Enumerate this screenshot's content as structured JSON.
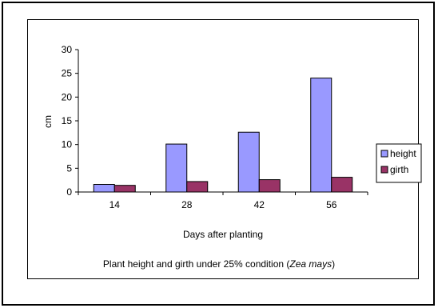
{
  "chart_data": {
    "type": "bar",
    "categories": [
      "14",
      "28",
      "42",
      "56"
    ],
    "series": [
      {
        "name": "height",
        "values": [
          1.6,
          10.1,
          12.6,
          24.0
        ],
        "color": "#9999ff"
      },
      {
        "name": "girth",
        "values": [
          1.4,
          2.2,
          2.6,
          3.1
        ],
        "color": "#993366"
      }
    ],
    "xlabel": "Days after planting",
    "ylabel": "cm",
    "ylim": [
      0,
      30
    ],
    "yticks": [
      0,
      5,
      10,
      15,
      20,
      25,
      30
    ],
    "caption_prefix": "Plant height and girth under 25% condition (",
    "caption_species": "Zea mays",
    "caption_suffix": ")",
    "legend_position": "right",
    "grid": false
  }
}
